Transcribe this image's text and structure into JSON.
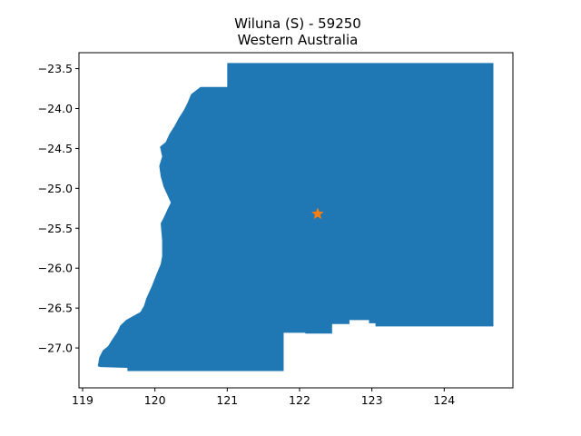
{
  "title": {
    "line1": "Wiluna (S) - 59250",
    "line2": "Western Australia"
  },
  "chart_data": {
    "type": "map",
    "xlim": [
      118.95,
      124.95
    ],
    "ylim": [
      -27.5,
      -23.3
    ],
    "grid": false,
    "x_ticks": [
      "119",
      "120",
      "121",
      "122",
      "123",
      "124"
    ],
    "y_ticks": [
      "−23.5",
      "−24.0",
      "−24.5",
      "−25.0",
      "−25.5",
      "−26.0",
      "−26.5",
      "−27.0"
    ],
    "region": {
      "name": "Wiluna (S) - 59250",
      "fill": "#1f77b4",
      "boundary": [
        [
          121.0,
          -23.43
        ],
        [
          124.68,
          -23.43
        ],
        [
          124.68,
          -26.73
        ],
        [
          123.05,
          -26.73
        ],
        [
          123.05,
          -26.69
        ],
        [
          122.96,
          -26.69
        ],
        [
          122.96,
          -26.65
        ],
        [
          122.69,
          -26.65
        ],
        [
          122.69,
          -26.7
        ],
        [
          122.45,
          -26.7
        ],
        [
          122.45,
          -26.82
        ],
        [
          122.08,
          -26.82
        ],
        [
          122.08,
          -26.81
        ],
        [
          121.78,
          -26.81
        ],
        [
          121.78,
          -27.29
        ],
        [
          119.62,
          -27.29
        ],
        [
          119.62,
          -27.25
        ],
        [
          119.25,
          -27.24
        ],
        [
          119.21,
          -27.23
        ],
        [
          119.23,
          -27.12
        ],
        [
          119.28,
          -27.03
        ],
        [
          119.35,
          -26.98
        ],
        [
          119.42,
          -26.88
        ],
        [
          119.48,
          -26.8
        ],
        [
          119.52,
          -26.72
        ],
        [
          119.6,
          -26.65
        ],
        [
          119.7,
          -26.6
        ],
        [
          119.8,
          -26.55
        ],
        [
          119.85,
          -26.47
        ],
        [
          119.88,
          -26.38
        ],
        [
          119.92,
          -26.3
        ],
        [
          119.96,
          -26.22
        ],
        [
          120.02,
          -26.08
        ],
        [
          120.08,
          -25.95
        ],
        [
          120.1,
          -25.85
        ],
        [
          120.1,
          -25.75
        ],
        [
          120.1,
          -25.65
        ],
        [
          120.09,
          -25.55
        ],
        [
          120.08,
          -25.44
        ],
        [
          120.13,
          -25.35
        ],
        [
          120.18,
          -25.25
        ],
        [
          120.22,
          -25.18
        ],
        [
          120.18,
          -25.1
        ],
        [
          120.12,
          -24.98
        ],
        [
          120.08,
          -24.85
        ],
        [
          120.06,
          -24.72
        ],
        [
          120.1,
          -24.6
        ],
        [
          120.07,
          -24.48
        ],
        [
          120.15,
          -24.42
        ],
        [
          120.2,
          -24.32
        ],
        [
          120.27,
          -24.22
        ],
        [
          120.33,
          -24.12
        ],
        [
          120.4,
          -24.02
        ],
        [
          120.45,
          -23.93
        ],
        [
          120.5,
          -23.82
        ],
        [
          120.63,
          -23.73
        ],
        [
          121.0,
          -23.73
        ]
      ]
    },
    "marker": {
      "type": "star",
      "x": 122.25,
      "y": -25.32,
      "color": "#ff7f0e"
    }
  }
}
